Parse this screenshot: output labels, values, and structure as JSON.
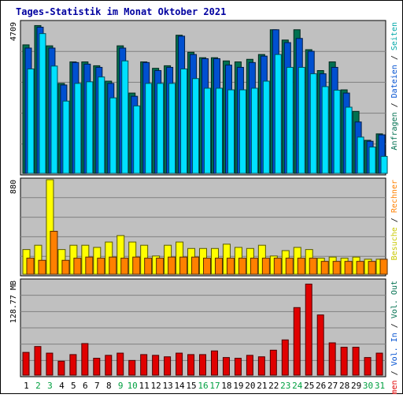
{
  "chart_data": [
    {
      "panel": "top",
      "type": "bar",
      "title": "Tages-Statistik im Monat Oktober 2021",
      "ymax_label": "4709",
      "ylim": [
        0,
        4709
      ],
      "grid": true,
      "categories": [
        "1",
        "2",
        "3",
        "4",
        "5",
        "6",
        "7",
        "8",
        "9",
        "10",
        "11",
        "12",
        "13",
        "14",
        "15",
        "16",
        "17",
        "18",
        "19",
        "20",
        "21",
        "22",
        "23",
        "24",
        "25",
        "26",
        "27",
        "28",
        "29",
        "30",
        "31"
      ],
      "series": [
        {
          "name": "Anfragen",
          "color": "#007050",
          "values": [
            4000,
            4600,
            3970,
            2800,
            3470,
            3470,
            3350,
            2870,
            3970,
            2500,
            3470,
            3270,
            3350,
            4300,
            3770,
            3600,
            3600,
            3500,
            3470,
            3550,
            3700,
            4470,
            4150,
            4470,
            3850,
            3200,
            3470,
            2600,
            1930,
            1030,
            1230
          ]
        },
        {
          "name": "Dateien",
          "color": "#0050d0",
          "values": [
            3900,
            4550,
            3900,
            2750,
            3450,
            3400,
            3300,
            2800,
            3900,
            2400,
            3450,
            3200,
            3300,
            4270,
            3700,
            3570,
            3570,
            3370,
            3300,
            3450,
            3650,
            4470,
            4070,
            4200,
            3800,
            3100,
            3300,
            2500,
            1600,
            1000,
            1200
          ]
        },
        {
          "name": "Seiten",
          "color": "#00e0ff",
          "values": [
            3250,
            4350,
            3340,
            2250,
            2800,
            2850,
            3000,
            2350,
            3500,
            2100,
            2800,
            2800,
            2800,
            3250,
            2950,
            2650,
            2650,
            2600,
            2600,
            2650,
            2870,
            3700,
            3300,
            3300,
            3100,
            2700,
            2590,
            2060,
            1130,
            820,
            530
          ]
        }
      ]
    },
    {
      "panel": "middle",
      "type": "bar",
      "ymax_label": "880",
      "ylim": [
        0,
        880
      ],
      "grid": true,
      "categories": [
        "1",
        "2",
        "3",
        "4",
        "5",
        "6",
        "7",
        "8",
        "9",
        "10",
        "11",
        "12",
        "13",
        "14",
        "15",
        "16",
        "17",
        "18",
        "19",
        "20",
        "21",
        "22",
        "23",
        "24",
        "25",
        "26",
        "27",
        "28",
        "29",
        "30",
        "31"
      ],
      "series": [
        {
          "name": "Besuche",
          "color": "#ffff00",
          "values": [
            230,
            270,
            880,
            230,
            270,
            270,
            250,
            300,
            360,
            300,
            270,
            170,
            270,
            300,
            240,
            240,
            240,
            280,
            250,
            240,
            270,
            170,
            220,
            250,
            230,
            150,
            160,
            150,
            160,
            140,
            140
          ]
        },
        {
          "name": "Rechner",
          "color": "#ff8000",
          "values": [
            150,
            130,
            400,
            130,
            150,
            160,
            150,
            160,
            150,
            160,
            150,
            150,
            160,
            160,
            160,
            150,
            150,
            150,
            150,
            150,
            150,
            150,
            150,
            150,
            150,
            120,
            120,
            120,
            120,
            120,
            140
          ]
        }
      ]
    },
    {
      "panel": "bottom",
      "type": "bar",
      "ymax_label": "128.77 MB",
      "ylim": [
        0,
        128.77
      ],
      "grid": true,
      "categories": [
        "1",
        "2",
        "3",
        "4",
        "5",
        "6",
        "7",
        "8",
        "9",
        "10",
        "11",
        "12",
        "13",
        "14",
        "15",
        "16",
        "17",
        "18",
        "19",
        "20",
        "21",
        "22",
        "23",
        "24",
        "25",
        "26",
        "27",
        "28",
        "29",
        "30",
        "31"
      ],
      "series": [
        {
          "name": "Volumen",
          "color": "#e00000",
          "values": [
            31,
            39,
            30,
            19,
            28,
            43,
            23,
            27,
            30,
            20,
            28,
            27,
            25,
            30,
            28,
            28,
            33,
            24,
            23,
            27,
            25,
            34,
            48,
            92,
            124,
            82,
            44,
            38,
            38,
            24,
            30
          ]
        }
      ]
    }
  ],
  "legends": {
    "right_top": [
      {
        "text": "Anfragen",
        "color": "#007050"
      },
      {
        "text": "Dateien",
        "color": "#0050d0"
      },
      {
        "text": "Seiten",
        "color": "#00a8a8"
      }
    ],
    "right_middle": [
      {
        "text": "Besuche",
        "color": "#c8c800"
      },
      {
        "text": "Rechner",
        "color": "#ff8000"
      }
    ],
    "right_bottom": [
      {
        "text": "Volumen",
        "color": "#e00000"
      },
      {
        "text": "Vol. In",
        "color": "#0050d0"
      },
      {
        "text": "Vol. Out",
        "color": "#007050"
      }
    ],
    "separator": " / "
  },
  "colors": {
    "panel_bg": "#c0c0c0",
    "grid": "#808080",
    "title": "#0000a0",
    "weekend_day": "#00a040",
    "weekday": "#000000"
  },
  "weekend_days": [
    "2",
    "3",
    "9",
    "10",
    "16",
    "17",
    "23",
    "24",
    "30",
    "31"
  ]
}
